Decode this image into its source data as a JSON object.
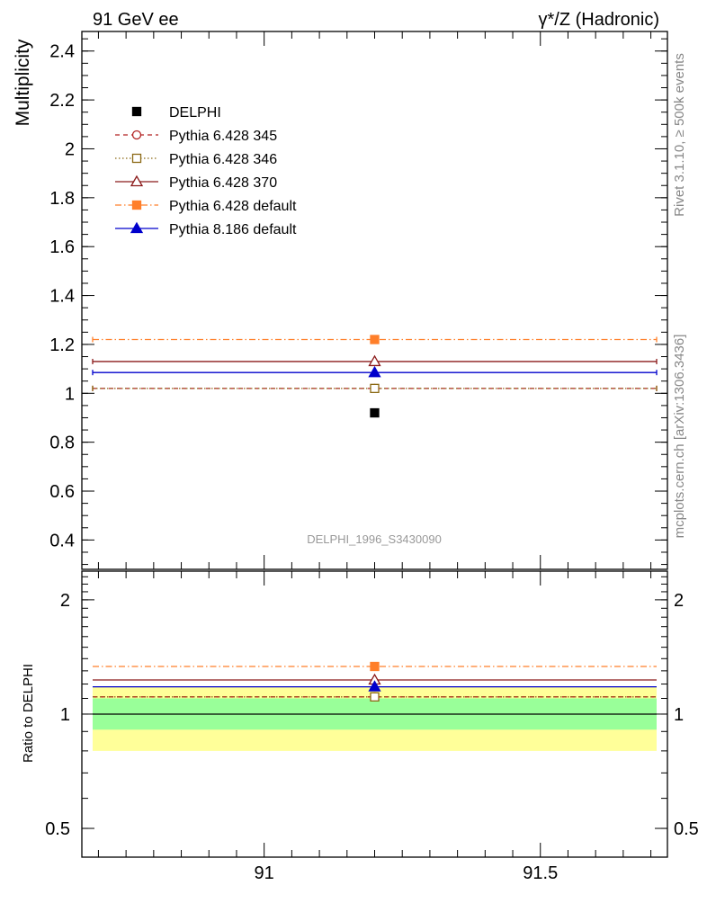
{
  "header": {
    "left_title": "91 GeV ee",
    "right_title": "γ*/Z (Hadronic)"
  },
  "side_labels": {
    "rivet": "Rivet 3.1.10, ≥ 500k events",
    "mcplots": "mcplots.cern.ch [arXiv:1306.3436]"
  },
  "watermark": "DELPHI_1996_S3430090",
  "colors": {
    "data": "#000000",
    "p345": "#b22222",
    "p346": "#8b6914",
    "p370": "#8b1a1a",
    "p6default": "#ff7f2a",
    "p8default": "#0000cc",
    "band_inner": "#99ff99",
    "band_outer": "#ffff99"
  },
  "chart_data": {
    "type": "scatter",
    "x": [
      91.2
    ],
    "xlim": [
      90.67,
      91.73
    ],
    "x_ticks": [
      {
        "value": 91,
        "label": "91"
      },
      {
        "value": 91.5,
        "label": "91.5"
      }
    ],
    "main": {
      "ylabel": "Multiplicity",
      "ylim": [
        0.28,
        2.48
      ],
      "y_ticks": [
        {
          "value": 0.4,
          "label": "0.4"
        },
        {
          "value": 0.6,
          "label": "0.6"
        },
        {
          "value": 0.8,
          "label": "0.8"
        },
        {
          "value": 1.0,
          "label": "1"
        },
        {
          "value": 1.2,
          "label": "1.2"
        },
        {
          "value": 1.4,
          "label": "1.4"
        },
        {
          "value": 1.6,
          "label": "1.6"
        },
        {
          "value": 1.8,
          "label": "1.8"
        },
        {
          "value": 2.0,
          "label": "2"
        },
        {
          "value": 2.2,
          "label": "2.2"
        },
        {
          "value": 2.4,
          "label": "2.4"
        }
      ]
    },
    "ratio": {
      "ylabel": "Ratio to DELPHI",
      "ylim": [
        0.42,
        2.38
      ],
      "scale": "log",
      "y_ticks": [
        {
          "value": 0.5,
          "label": "0.5"
        },
        {
          "value": 1,
          "label": "1"
        },
        {
          "value": 2,
          "label": "2"
        }
      ],
      "band_inner": [
        0.91,
        1.1
      ],
      "band_outer": [
        0.8,
        1.18
      ]
    },
    "series": [
      {
        "key": "p6default",
        "name": "Pythia 6.428 default",
        "value": 1.22,
        "ratio": 1.335,
        "marker": "square-filled",
        "line": "dashdot"
      },
      {
        "key": "p370",
        "name": "Pythia 6.428 370",
        "value": 1.13,
        "ratio": 1.23,
        "marker": "triangle-open",
        "line": "solid"
      },
      {
        "key": "p8default",
        "name": "Pythia 8.186 default",
        "value": 1.085,
        "ratio": 1.18,
        "marker": "triangle-filled",
        "line": "solid"
      },
      {
        "key": "p345",
        "name": "Pythia 6.428 345",
        "value": 1.02,
        "ratio": 1.11,
        "marker": "circle-open",
        "line": "dashed"
      },
      {
        "key": "p346",
        "name": "Pythia 6.428 346",
        "value": 1.02,
        "ratio": 1.11,
        "marker": "square-open",
        "line": "dotted"
      }
    ],
    "data_point": {
      "key": "data",
      "name": "DELPHI",
      "value": 0.92,
      "marker": "square-filled"
    },
    "legend": {
      "placement": "top-left",
      "order": [
        "data",
        "p345",
        "p346",
        "p370",
        "p6default",
        "p8default"
      ]
    }
  }
}
